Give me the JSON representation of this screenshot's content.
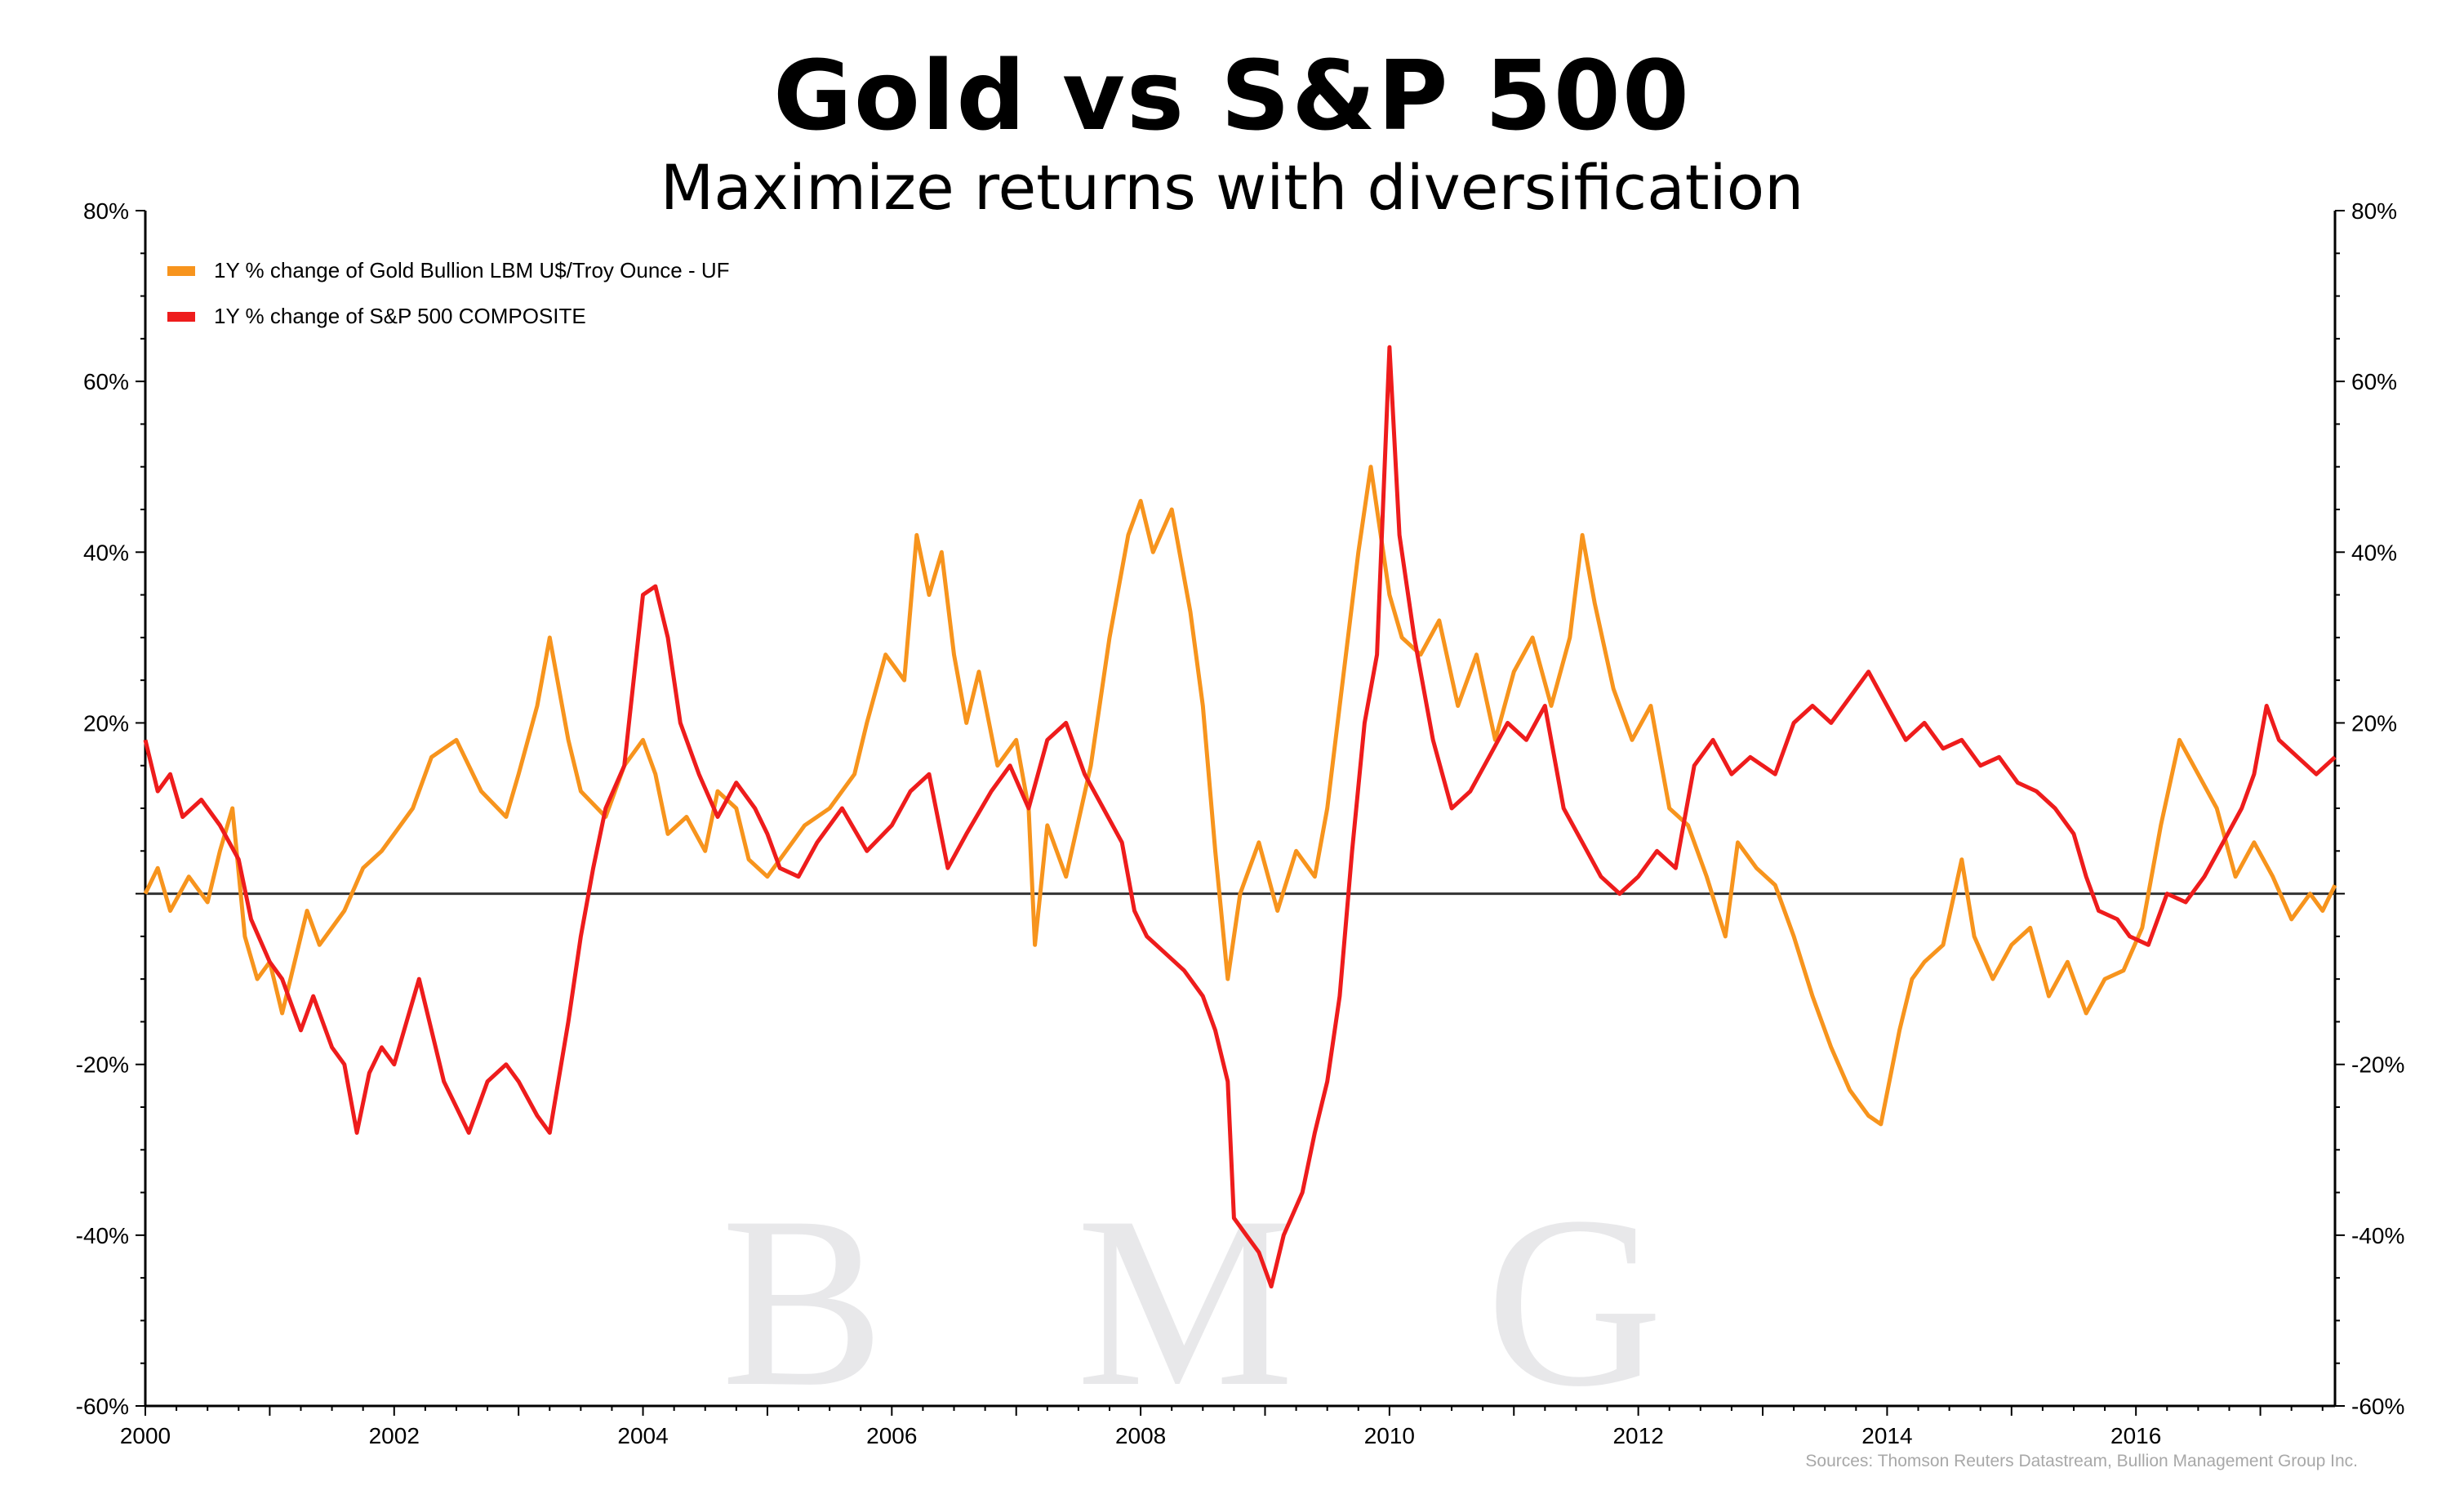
{
  "title": "Gold vs S&P 500",
  "subtitle": "Maximize returns with diversification",
  "source": "Sources: Thomson Reuters Datastream, Bullion Management Group Inc.",
  "watermark": {
    "text": "B M G",
    "color": "#e8e8ea"
  },
  "colors": {
    "gold": "#f7941d",
    "sp500": "#ee1c1c",
    "zero_line": "#333333",
    "axis": "#000000"
  },
  "chart_data": {
    "type": "line",
    "title": "Gold vs S&P 500",
    "subtitle": "Maximize returns with diversification",
    "xlim": [
      2000,
      2017.6
    ],
    "ylim": [
      -60,
      80
    ],
    "x_ticks": [
      2000,
      2002,
      2004,
      2006,
      2008,
      2010,
      2012,
      2014,
      2016
    ],
    "x_tick_labels": [
      "2000",
      "2002",
      "2004",
      "2006",
      "2008",
      "2010",
      "2012",
      "2014",
      "2016"
    ],
    "y_ticks": [
      -60,
      -40,
      -20,
      0,
      20,
      40,
      60,
      80
    ],
    "y_tick_labels": [
      "-60%",
      "-40%",
      "-20%",
      "",
      "20%",
      "40%",
      "60%",
      "80%"
    ],
    "grid": false,
    "legend_position": "top-left",
    "series": [
      {
        "name": "1Y % change of Gold Bullion LBM U$/Troy Ounce - UF",
        "color": "#f7941d",
        "points": [
          [
            2000.0,
            0
          ],
          [
            2000.1,
            3
          ],
          [
            2000.2,
            -2
          ],
          [
            2000.35,
            2
          ],
          [
            2000.5,
            -1
          ],
          [
            2000.6,
            5
          ],
          [
            2000.7,
            10
          ],
          [
            2000.8,
            -5
          ],
          [
            2000.9,
            -10
          ],
          [
            2001.0,
            -8
          ],
          [
            2001.1,
            -14
          ],
          [
            2001.2,
            -8
          ],
          [
            2001.3,
            -2
          ],
          [
            2001.4,
            -6
          ],
          [
            2001.5,
            -4
          ],
          [
            2001.6,
            -2
          ],
          [
            2001.75,
            3
          ],
          [
            2001.9,
            5
          ],
          [
            2002.0,
            7
          ],
          [
            2002.15,
            10
          ],
          [
            2002.3,
            16
          ],
          [
            2002.5,
            18
          ],
          [
            2002.7,
            12
          ],
          [
            2002.9,
            9
          ],
          [
            2003.0,
            14
          ],
          [
            2003.15,
            22
          ],
          [
            2003.25,
            30
          ],
          [
            2003.4,
            18
          ],
          [
            2003.5,
            12
          ],
          [
            2003.7,
            9
          ],
          [
            2003.85,
            15
          ],
          [
            2004.0,
            18
          ],
          [
            2004.1,
            14
          ],
          [
            2004.2,
            7
          ],
          [
            2004.35,
            9
          ],
          [
            2004.5,
            5
          ],
          [
            2004.6,
            12
          ],
          [
            2004.75,
            10
          ],
          [
            2004.85,
            4
          ],
          [
            2005.0,
            2
          ],
          [
            2005.15,
            5
          ],
          [
            2005.3,
            8
          ],
          [
            2005.5,
            10
          ],
          [
            2005.7,
            14
          ],
          [
            2005.8,
            20
          ],
          [
            2005.95,
            28
          ],
          [
            2006.1,
            25
          ],
          [
            2006.2,
            42
          ],
          [
            2006.3,
            35
          ],
          [
            2006.4,
            40
          ],
          [
            2006.5,
            28
          ],
          [
            2006.6,
            20
          ],
          [
            2006.7,
            26
          ],
          [
            2006.85,
            15
          ],
          [
            2007.0,
            18
          ],
          [
            2007.1,
            10
          ],
          [
            2007.15,
            -6
          ],
          [
            2007.25,
            8
          ],
          [
            2007.4,
            2
          ],
          [
            2007.6,
            15
          ],
          [
            2007.75,
            30
          ],
          [
            2007.9,
            42
          ],
          [
            2008.0,
            46
          ],
          [
            2008.1,
            40
          ],
          [
            2008.25,
            45
          ],
          [
            2008.4,
            33
          ],
          [
            2008.5,
            22
          ],
          [
            2008.6,
            5
          ],
          [
            2008.7,
            -10
          ],
          [
            2008.8,
            0
          ],
          [
            2008.95,
            6
          ],
          [
            2009.1,
            -2
          ],
          [
            2009.25,
            5
          ],
          [
            2009.4,
            2
          ],
          [
            2009.5,
            10
          ],
          [
            2009.6,
            22
          ],
          [
            2009.75,
            40
          ],
          [
            2009.85,
            50
          ],
          [
            2010.0,
            35
          ],
          [
            2010.1,
            30
          ],
          [
            2010.25,
            28
          ],
          [
            2010.4,
            32
          ],
          [
            2010.55,
            22
          ],
          [
            2010.7,
            28
          ],
          [
            2010.85,
            18
          ],
          [
            2011.0,
            26
          ],
          [
            2011.15,
            30
          ],
          [
            2011.3,
            22
          ],
          [
            2011.45,
            30
          ],
          [
            2011.55,
            42
          ],
          [
            2011.65,
            34
          ],
          [
            2011.8,
            24
          ],
          [
            2011.95,
            18
          ],
          [
            2012.1,
            22
          ],
          [
            2012.25,
            10
          ],
          [
            2012.4,
            8
          ],
          [
            2012.55,
            2
          ],
          [
            2012.7,
            -5
          ],
          [
            2012.8,
            6
          ],
          [
            2012.95,
            3
          ],
          [
            2013.1,
            1
          ],
          [
            2013.25,
            -5
          ],
          [
            2013.4,
            -12
          ],
          [
            2013.55,
            -18
          ],
          [
            2013.7,
            -23
          ],
          [
            2013.85,
            -26
          ],
          [
            2013.95,
            -27
          ],
          [
            2014.1,
            -16
          ],
          [
            2014.2,
            -10
          ],
          [
            2014.3,
            -8
          ],
          [
            2014.45,
            -6
          ],
          [
            2014.6,
            4
          ],
          [
            2014.7,
            -5
          ],
          [
            2014.85,
            -10
          ],
          [
            2015.0,
            -6
          ],
          [
            2015.15,
            -4
          ],
          [
            2015.3,
            -12
          ],
          [
            2015.45,
            -8
          ],
          [
            2015.6,
            -14
          ],
          [
            2015.75,
            -10
          ],
          [
            2015.9,
            -9
          ],
          [
            2016.05,
            -4
          ],
          [
            2016.2,
            8
          ],
          [
            2016.35,
            18
          ],
          [
            2016.5,
            14
          ],
          [
            2016.65,
            10
          ],
          [
            2016.8,
            2
          ],
          [
            2016.95,
            6
          ],
          [
            2017.1,
            2
          ],
          [
            2017.25,
            -3
          ],
          [
            2017.4,
            0
          ],
          [
            2017.5,
            -2
          ],
          [
            2017.6,
            1
          ]
        ]
      },
      {
        "name": "1Y % change of S&P 500 COMPOSITE",
        "color": "#ee1c1c",
        "points": [
          [
            2000.0,
            18
          ],
          [
            2000.1,
            12
          ],
          [
            2000.2,
            14
          ],
          [
            2000.3,
            9
          ],
          [
            2000.45,
            11
          ],
          [
            2000.6,
            8
          ],
          [
            2000.75,
            4
          ],
          [
            2000.85,
            -3
          ],
          [
            2001.0,
            -8
          ],
          [
            2001.1,
            -10
          ],
          [
            2001.25,
            -16
          ],
          [
            2001.35,
            -12
          ],
          [
            2001.5,
            -18
          ],
          [
            2001.6,
            -20
          ],
          [
            2001.7,
            -28
          ],
          [
            2001.8,
            -21
          ],
          [
            2001.9,
            -18
          ],
          [
            2002.0,
            -20
          ],
          [
            2002.1,
            -15
          ],
          [
            2002.2,
            -10
          ],
          [
            2002.3,
            -16
          ],
          [
            2002.4,
            -22
          ],
          [
            2002.5,
            -25
          ],
          [
            2002.6,
            -28
          ],
          [
            2002.75,
            -22
          ],
          [
            2002.9,
            -20
          ],
          [
            2003.0,
            -22
          ],
          [
            2003.15,
            -26
          ],
          [
            2003.25,
            -28
          ],
          [
            2003.4,
            -15
          ],
          [
            2003.5,
            -5
          ],
          [
            2003.6,
            3
          ],
          [
            2003.7,
            10
          ],
          [
            2003.85,
            15
          ],
          [
            2004.0,
            35
          ],
          [
            2004.1,
            36
          ],
          [
            2004.2,
            30
          ],
          [
            2004.3,
            20
          ],
          [
            2004.45,
            14
          ],
          [
            2004.6,
            9
          ],
          [
            2004.75,
            13
          ],
          [
            2004.9,
            10
          ],
          [
            2005.0,
            7
          ],
          [
            2005.1,
            3
          ],
          [
            2005.25,
            2
          ],
          [
            2005.4,
            6
          ],
          [
            2005.6,
            10
          ],
          [
            2005.8,
            5
          ],
          [
            2006.0,
            8
          ],
          [
            2006.15,
            12
          ],
          [
            2006.3,
            14
          ],
          [
            2006.45,
            3
          ],
          [
            2006.6,
            7
          ],
          [
            2006.8,
            12
          ],
          [
            2006.95,
            15
          ],
          [
            2007.1,
            10
          ],
          [
            2007.25,
            18
          ],
          [
            2007.4,
            20
          ],
          [
            2007.55,
            14
          ],
          [
            2007.7,
            10
          ],
          [
            2007.85,
            6
          ],
          [
            2007.95,
            -2
          ],
          [
            2008.05,
            -5
          ],
          [
            2008.2,
            -7
          ],
          [
            2008.35,
            -9
          ],
          [
            2008.5,
            -12
          ],
          [
            2008.6,
            -16
          ],
          [
            2008.7,
            -22
          ],
          [
            2008.75,
            -38
          ],
          [
            2008.85,
            -40
          ],
          [
            2008.95,
            -42
          ],
          [
            2009.05,
            -46
          ],
          [
            2009.15,
            -40
          ],
          [
            2009.3,
            -35
          ],
          [
            2009.4,
            -28
          ],
          [
            2009.5,
            -22
          ],
          [
            2009.6,
            -12
          ],
          [
            2009.7,
            5
          ],
          [
            2009.8,
            20
          ],
          [
            2009.9,
            28
          ],
          [
            2010.0,
            64
          ],
          [
            2010.08,
            42
          ],
          [
            2010.2,
            30
          ],
          [
            2010.35,
            18
          ],
          [
            2010.5,
            10
          ],
          [
            2010.65,
            12
          ],
          [
            2010.8,
            16
          ],
          [
            2010.95,
            20
          ],
          [
            2011.1,
            18
          ],
          [
            2011.25,
            22
          ],
          [
            2011.4,
            10
          ],
          [
            2011.55,
            6
          ],
          [
            2011.7,
            2
          ],
          [
            2011.85,
            0
          ],
          [
            2012.0,
            2
          ],
          [
            2012.15,
            5
          ],
          [
            2012.3,
            3
          ],
          [
            2012.45,
            15
          ],
          [
            2012.6,
            18
          ],
          [
            2012.75,
            14
          ],
          [
            2012.9,
            16
          ],
          [
            2013.1,
            14
          ],
          [
            2013.25,
            20
          ],
          [
            2013.4,
            22
          ],
          [
            2013.55,
            20
          ],
          [
            2013.7,
            23
          ],
          [
            2013.85,
            26
          ],
          [
            2014.0,
            22
          ],
          [
            2014.15,
            18
          ],
          [
            2014.3,
            20
          ],
          [
            2014.45,
            17
          ],
          [
            2014.6,
            18
          ],
          [
            2014.75,
            15
          ],
          [
            2014.9,
            16
          ],
          [
            2015.05,
            13
          ],
          [
            2015.2,
            12
          ],
          [
            2015.35,
            10
          ],
          [
            2015.5,
            7
          ],
          [
            2015.6,
            2
          ],
          [
            2015.7,
            -2
          ],
          [
            2015.85,
            -3
          ],
          [
            2015.95,
            -5
          ],
          [
            2016.1,
            -6
          ],
          [
            2016.25,
            0
          ],
          [
            2016.4,
            -1
          ],
          [
            2016.55,
            2
          ],
          [
            2016.7,
            6
          ],
          [
            2016.85,
            10
          ],
          [
            2016.95,
            14
          ],
          [
            2017.05,
            22
          ],
          [
            2017.15,
            18
          ],
          [
            2017.3,
            16
          ],
          [
            2017.45,
            14
          ],
          [
            2017.6,
            16
          ]
        ]
      }
    ]
  }
}
